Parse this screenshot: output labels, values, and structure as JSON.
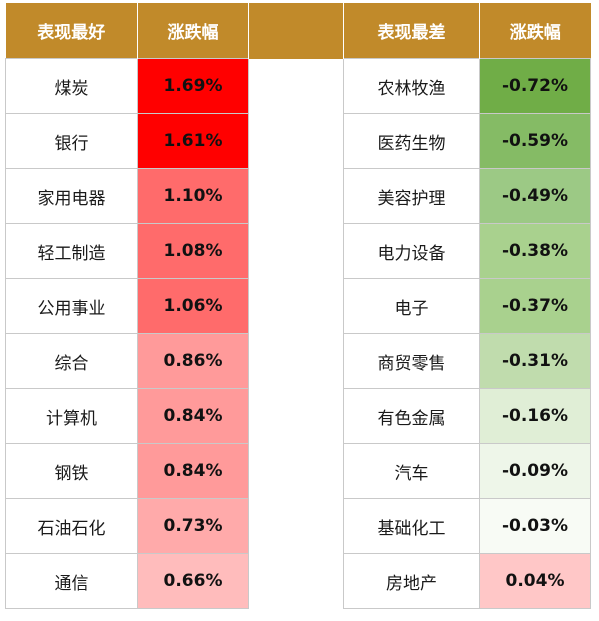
{
  "header": {
    "best_label": "表现最好",
    "best_change_label": "涨跌幅",
    "worst_label": "表现最差",
    "worst_change_label": "涨跌幅"
  },
  "colors": {
    "header_bg": "#c18a2a",
    "best": [
      "#ff0000",
      "#ff0000",
      "#ff6b6b",
      "#ff6b6b",
      "#ff6b6b",
      "#ff9a9a",
      "#ff9a9a",
      "#ff9a9a",
      "#ffaaaa",
      "#ffbcbc"
    ],
    "worst": [
      "#70ad47",
      "#85bb65",
      "#9cc985",
      "#a9d18e",
      "#a9d18e",
      "#c0dcad",
      "#e0eed6",
      "#eef6e9",
      "#f8fbf5",
      "#ffc7c7"
    ]
  },
  "chart_data": {
    "type": "table",
    "columns": [
      "表现最好",
      "涨跌幅",
      "表现最差",
      "涨跌幅"
    ],
    "best": [
      {
        "industry": "煤炭",
        "change": "1.69%"
      },
      {
        "industry": "银行",
        "change": "1.61%"
      },
      {
        "industry": "家用电器",
        "change": "1.10%"
      },
      {
        "industry": "轻工制造",
        "change": "1.08%"
      },
      {
        "industry": "公用事业",
        "change": "1.06%"
      },
      {
        "industry": "综合",
        "change": "0.86%"
      },
      {
        "industry": "计算机",
        "change": "0.84%"
      },
      {
        "industry": "钢铁",
        "change": "0.84%"
      },
      {
        "industry": "石油石化",
        "change": "0.73%"
      },
      {
        "industry": "通信",
        "change": "0.66%"
      }
    ],
    "worst": [
      {
        "industry": "农林牧渔",
        "change": "-0.72%"
      },
      {
        "industry": "医药生物",
        "change": "-0.59%"
      },
      {
        "industry": "美容护理",
        "change": "-0.49%"
      },
      {
        "industry": "电力设备",
        "change": "-0.38%"
      },
      {
        "industry": "电子",
        "change": "-0.37%"
      },
      {
        "industry": "商贸零售",
        "change": "-0.31%"
      },
      {
        "industry": "有色金属",
        "change": "-0.16%"
      },
      {
        "industry": "汽车",
        "change": "-0.09%"
      },
      {
        "industry": "基础化工",
        "change": "-0.03%"
      },
      {
        "industry": "房地产",
        "change": "0.04%"
      }
    ]
  }
}
